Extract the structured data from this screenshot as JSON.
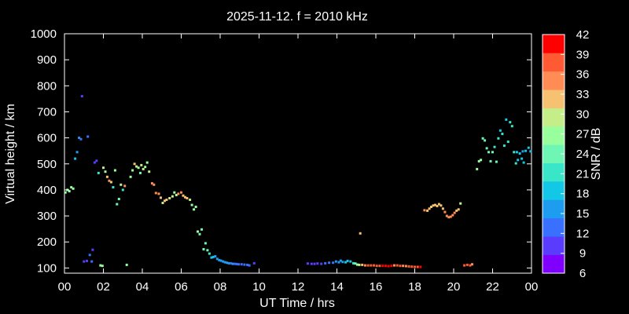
{
  "chart_data": {
    "type": "scatter",
    "title": "2025-11-12. f = 2010 kHz",
    "xlabel": "UT Time / hrs",
    "ylabel": "Virtual height / km",
    "xlim": [
      0,
      24
    ],
    "ylim": [
      80,
      1000
    ],
    "x_ticks": [
      "00",
      "02",
      "04",
      "06",
      "08",
      "10",
      "12",
      "14",
      "16",
      "18",
      "20",
      "22",
      "00"
    ],
    "y_ticks": [
      100,
      200,
      300,
      400,
      500,
      600,
      700,
      800,
      900,
      1000
    ],
    "colorbar": {
      "label": "SNR / dB",
      "min": 6,
      "max": 42,
      "ticks": [
        6,
        9,
        12,
        15,
        18,
        21,
        24,
        27,
        30,
        33,
        36,
        39,
        42
      ],
      "colors": [
        "#8000ff",
        "#5a3cff",
        "#3a70ff",
        "#1e9cf0",
        "#12c8e6",
        "#3ae6c8",
        "#6ef7b4",
        "#98ff9c",
        "#c6ee88",
        "#f6c272",
        "#ff8c54",
        "#ff5a34",
        "#ff0000"
      ]
    },
    "points": [
      [
        0.05,
        390,
        26
      ],
      [
        0.15,
        400,
        28
      ],
      [
        0.25,
        395,
        26
      ],
      [
        0.35,
        410,
        27
      ],
      [
        0.45,
        405,
        26
      ],
      [
        0.55,
        520,
        19
      ],
      [
        0.65,
        545,
        17
      ],
      [
        0.75,
        600,
        15
      ],
      [
        0.85,
        595,
        13
      ],
      [
        0.9,
        760,
        10
      ],
      [
        1.0,
        125,
        11
      ],
      [
        1.15,
        127,
        10
      ],
      [
        1.2,
        605,
        12
      ],
      [
        1.3,
        150,
        14
      ],
      [
        1.4,
        125,
        12
      ],
      [
        1.45,
        170,
        10
      ],
      [
        1.55,
        505,
        9
      ],
      [
        1.65,
        512,
        9
      ],
      [
        1.75,
        465,
        22
      ],
      [
        1.85,
        110,
        26
      ],
      [
        1.95,
        108,
        27
      ],
      [
        2.0,
        485,
        29
      ],
      [
        2.1,
        470,
        28
      ],
      [
        2.2,
        450,
        33
      ],
      [
        2.3,
        435,
        34
      ],
      [
        2.4,
        430,
        33
      ],
      [
        2.5,
        410,
        20
      ],
      [
        2.6,
        475,
        28
      ],
      [
        2.7,
        345,
        25
      ],
      [
        2.8,
        365,
        25
      ],
      [
        2.9,
        420,
        29
      ],
      [
        3.0,
        400,
        21
      ],
      [
        3.1,
        415,
        36
      ],
      [
        3.2,
        112,
        26
      ],
      [
        3.4,
        450,
        28
      ],
      [
        3.5,
        475,
        27
      ],
      [
        3.6,
        500,
        31
      ],
      [
        3.7,
        490,
        29
      ],
      [
        3.8,
        485,
        28
      ],
      [
        3.9,
        465,
        25
      ],
      [
        3.95,
        495,
        29
      ],
      [
        4.05,
        480,
        30
      ],
      [
        4.15,
        488,
        27
      ],
      [
        4.25,
        505,
        27
      ],
      [
        4.35,
        470,
        29
      ],
      [
        4.5,
        425,
        34
      ],
      [
        4.6,
        420,
        35
      ],
      [
        4.7,
        388,
        35
      ],
      [
        4.85,
        385,
        36
      ],
      [
        4.95,
        370,
        33
      ],
      [
        5.05,
        350,
        30
      ],
      [
        5.15,
        358,
        31
      ],
      [
        5.25,
        362,
        31
      ],
      [
        5.4,
        368,
        29
      ],
      [
        5.55,
        375,
        29
      ],
      [
        5.65,
        390,
        27
      ],
      [
        5.75,
        380,
        28
      ],
      [
        5.85,
        385,
        34
      ],
      [
        6.0,
        390,
        36
      ],
      [
        6.1,
        378,
        33
      ],
      [
        6.2,
        372,
        32
      ],
      [
        6.3,
        368,
        31
      ],
      [
        6.45,
        362,
        30
      ],
      [
        6.55,
        342,
        28
      ],
      [
        6.65,
        325,
        26
      ],
      [
        6.75,
        335,
        27
      ],
      [
        6.85,
        240,
        26
      ],
      [
        6.95,
        230,
        25
      ],
      [
        7.05,
        248,
        24
      ],
      [
        7.15,
        172,
        25
      ],
      [
        7.25,
        195,
        25
      ],
      [
        7.35,
        168,
        24
      ],
      [
        7.45,
        155,
        21
      ],
      [
        7.55,
        140,
        19
      ],
      [
        7.65,
        142,
        18
      ],
      [
        7.75,
        145,
        17
      ],
      [
        7.85,
        135,
        17
      ],
      [
        7.95,
        130,
        17
      ],
      [
        8.05,
        128,
        16
      ],
      [
        8.15,
        125,
        16
      ],
      [
        8.25,
        122,
        15
      ],
      [
        8.35,
        120,
        15
      ],
      [
        8.45,
        118,
        15
      ],
      [
        8.55,
        118,
        14
      ],
      [
        8.65,
        116,
        15
      ],
      [
        8.75,
        116,
        14
      ],
      [
        8.85,
        115,
        14
      ],
      [
        8.95,
        114,
        14
      ],
      [
        9.1,
        114,
        13
      ],
      [
        9.25,
        113,
        13
      ],
      [
        9.4,
        112,
        14
      ],
      [
        9.5,
        110,
        13
      ],
      [
        9.75,
        118,
        11
      ],
      [
        12.5,
        117,
        10
      ],
      [
        12.7,
        116,
        10
      ],
      [
        12.85,
        116,
        11
      ],
      [
        13.0,
        117,
        11
      ],
      [
        13.2,
        116,
        11
      ],
      [
        13.4,
        118,
        12
      ],
      [
        13.6,
        120,
        13
      ],
      [
        13.8,
        120,
        13
      ],
      [
        13.95,
        125,
        15
      ],
      [
        14.1,
        122,
        16
      ],
      [
        14.2,
        128,
        17
      ],
      [
        14.3,
        123,
        17
      ],
      [
        14.45,
        122,
        18
      ],
      [
        14.55,
        127,
        19
      ],
      [
        14.7,
        125,
        19
      ],
      [
        14.85,
        118,
        22
      ],
      [
        14.95,
        117,
        24
      ],
      [
        15.05,
        113,
        27
      ],
      [
        15.15,
        112,
        30
      ],
      [
        15.3,
        112,
        33
      ],
      [
        15.45,
        110,
        36
      ],
      [
        15.6,
        110,
        37
      ],
      [
        15.75,
        110,
        38
      ],
      [
        15.9,
        110,
        38
      ],
      [
        16.05,
        108,
        39
      ],
      [
        16.2,
        108,
        39
      ],
      [
        16.35,
        108,
        40
      ],
      [
        16.5,
        108,
        40
      ],
      [
        16.65,
        107,
        40
      ],
      [
        16.8,
        108,
        40
      ],
      [
        16.95,
        110,
        35
      ],
      [
        17.1,
        110,
        37
      ],
      [
        17.25,
        108,
        37
      ],
      [
        17.4,
        108,
        36
      ],
      [
        17.55,
        107,
        36
      ],
      [
        17.7,
        106,
        37
      ],
      [
        17.85,
        105,
        38
      ],
      [
        18.0,
        104,
        39
      ],
      [
        18.15,
        104,
        39
      ],
      [
        18.3,
        104,
        40
      ],
      [
        15.2,
        233,
        32
      ],
      [
        18.5,
        322,
        34
      ],
      [
        18.65,
        320,
        33
      ],
      [
        18.75,
        328,
        33
      ],
      [
        18.85,
        335,
        33
      ],
      [
        18.95,
        340,
        33
      ],
      [
        19.05,
        342,
        32
      ],
      [
        19.15,
        338,
        32
      ],
      [
        19.25,
        345,
        33
      ],
      [
        19.35,
        340,
        31
      ],
      [
        19.45,
        328,
        33
      ],
      [
        19.55,
        315,
        34
      ],
      [
        19.65,
        300,
        36
      ],
      [
        19.75,
        295,
        36
      ],
      [
        19.85,
        297,
        36
      ],
      [
        19.95,
        303,
        35
      ],
      [
        20.05,
        312,
        34
      ],
      [
        20.15,
        320,
        33
      ],
      [
        20.25,
        325,
        33
      ],
      [
        20.35,
        348,
        30
      ],
      [
        20.55,
        110,
        37
      ],
      [
        20.7,
        112,
        37
      ],
      [
        20.85,
        110,
        38
      ],
      [
        20.95,
        114,
        36
      ],
      [
        21.2,
        480,
        28
      ],
      [
        21.3,
        510,
        27
      ],
      [
        21.4,
        515,
        26
      ],
      [
        21.5,
        598,
        25
      ],
      [
        21.6,
        590,
        24
      ],
      [
        21.7,
        560,
        25
      ],
      [
        21.8,
        545,
        25
      ],
      [
        21.9,
        510,
        23
      ],
      [
        22.0,
        545,
        24
      ],
      [
        22.1,
        565,
        22
      ],
      [
        22.2,
        508,
        23
      ],
      [
        22.3,
        598,
        20
      ],
      [
        22.4,
        628,
        18
      ],
      [
        22.5,
        615,
        20
      ],
      [
        22.6,
        570,
        21
      ],
      [
        22.7,
        670,
        19
      ],
      [
        22.8,
        585,
        20
      ],
      [
        22.9,
        660,
        20
      ],
      [
        23.0,
        645,
        21
      ],
      [
        23.1,
        545,
        20
      ],
      [
        23.2,
        502,
        20
      ],
      [
        23.3,
        515,
        19
      ],
      [
        23.4,
        540,
        19
      ],
      [
        23.5,
        520,
        18
      ],
      [
        23.6,
        505,
        18
      ],
      [
        23.7,
        550,
        18
      ],
      [
        23.85,
        562,
        18
      ],
      [
        23.95,
        548,
        19
      ],
      [
        23.25,
        545,
        18
      ],
      [
        23.55,
        548,
        17
      ]
    ]
  }
}
